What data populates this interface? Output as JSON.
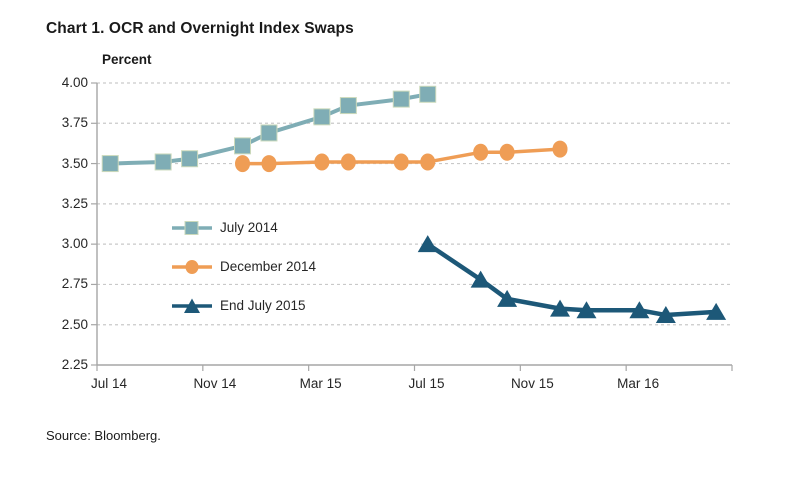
{
  "page": {
    "title": "Chart 1. OCR and Overnight Index Swaps",
    "source": "Source: Bloomberg."
  },
  "chart_data": {
    "type": "line",
    "title": "Chart 1. OCR and Overnight Index Swaps",
    "ylabel": "Percent",
    "ylim": [
      2.25,
      4.0
    ],
    "yticks": [
      4.0,
      3.75,
      3.5,
      3.25,
      3.0,
      2.75,
      2.5,
      2.25
    ],
    "ytick_labels": [
      "4.00",
      "3.75",
      "3.50",
      "3.25",
      "3.00",
      "2.75",
      "2.50",
      "2.25"
    ],
    "x_axis": {
      "unit": "months from Jul 2014",
      "range_months": [
        0,
        24
      ],
      "tick_months": [
        0,
        4,
        8,
        12,
        16,
        20
      ],
      "tick_labels": [
        "Jul 14",
        "Nov 14",
        "Mar 15",
        "Jul 15",
        "Nov 15",
        "Mar 16"
      ],
      "end_tick_month": 24
    },
    "grid": {
      "horizontal_dashed": true,
      "color": "#c9c9c9"
    },
    "axis_color": "#a6a6a6",
    "text_color": "#262626",
    "legend_position": "inside-left-middle",
    "series": [
      {
        "name": "July 2014",
        "marker": "square",
        "color": "#7fadb5",
        "marker_edge": "#cbd9bb",
        "x_months": [
          0.5,
          2.5,
          3.5,
          5.5,
          6.5,
          8.5,
          9.5,
          11.5,
          12.5
        ],
        "x_dates": [
          "Jul 14",
          "Sep 14",
          "Oct 14",
          "Dec 14",
          "Jan 15",
          "Mar 15",
          "Apr 15",
          "Jun 15",
          "Jul 15"
        ],
        "values": [
          3.5,
          3.51,
          3.53,
          3.61,
          3.69,
          3.79,
          3.86,
          3.9,
          3.93
        ]
      },
      {
        "name": "December 2014",
        "marker": "circle",
        "color": "#ef9d55",
        "marker_edge": "#ef9d55",
        "x_months": [
          5.5,
          6.5,
          8.5,
          9.5,
          11.5,
          12.5,
          14.5,
          15.5,
          17.5
        ],
        "x_dates": [
          "Dec 14",
          "Jan 15",
          "Mar 15",
          "Apr 15",
          "Jun 15",
          "Jul 15",
          "Sep 15",
          "Oct 15",
          "Dec 15"
        ],
        "values": [
          3.5,
          3.5,
          3.51,
          3.51,
          3.51,
          3.51,
          3.57,
          3.57,
          3.59
        ]
      },
      {
        "name": "End July 2015",
        "marker": "triangle",
        "color": "#1d5878",
        "marker_edge": "#1d5878",
        "x_months": [
          12.5,
          14.5,
          15.5,
          17.5,
          18.5,
          20.5,
          21.5,
          23.4
        ],
        "x_dates": [
          "Jul 15",
          "Sep 15",
          "Oct 15",
          "Dec 15",
          "Jan 16",
          "Mar 16",
          "Apr 16",
          "Jun 16"
        ],
        "values": [
          3.0,
          2.78,
          2.66,
          2.6,
          2.59,
          2.59,
          2.56,
          2.58
        ]
      }
    ]
  }
}
